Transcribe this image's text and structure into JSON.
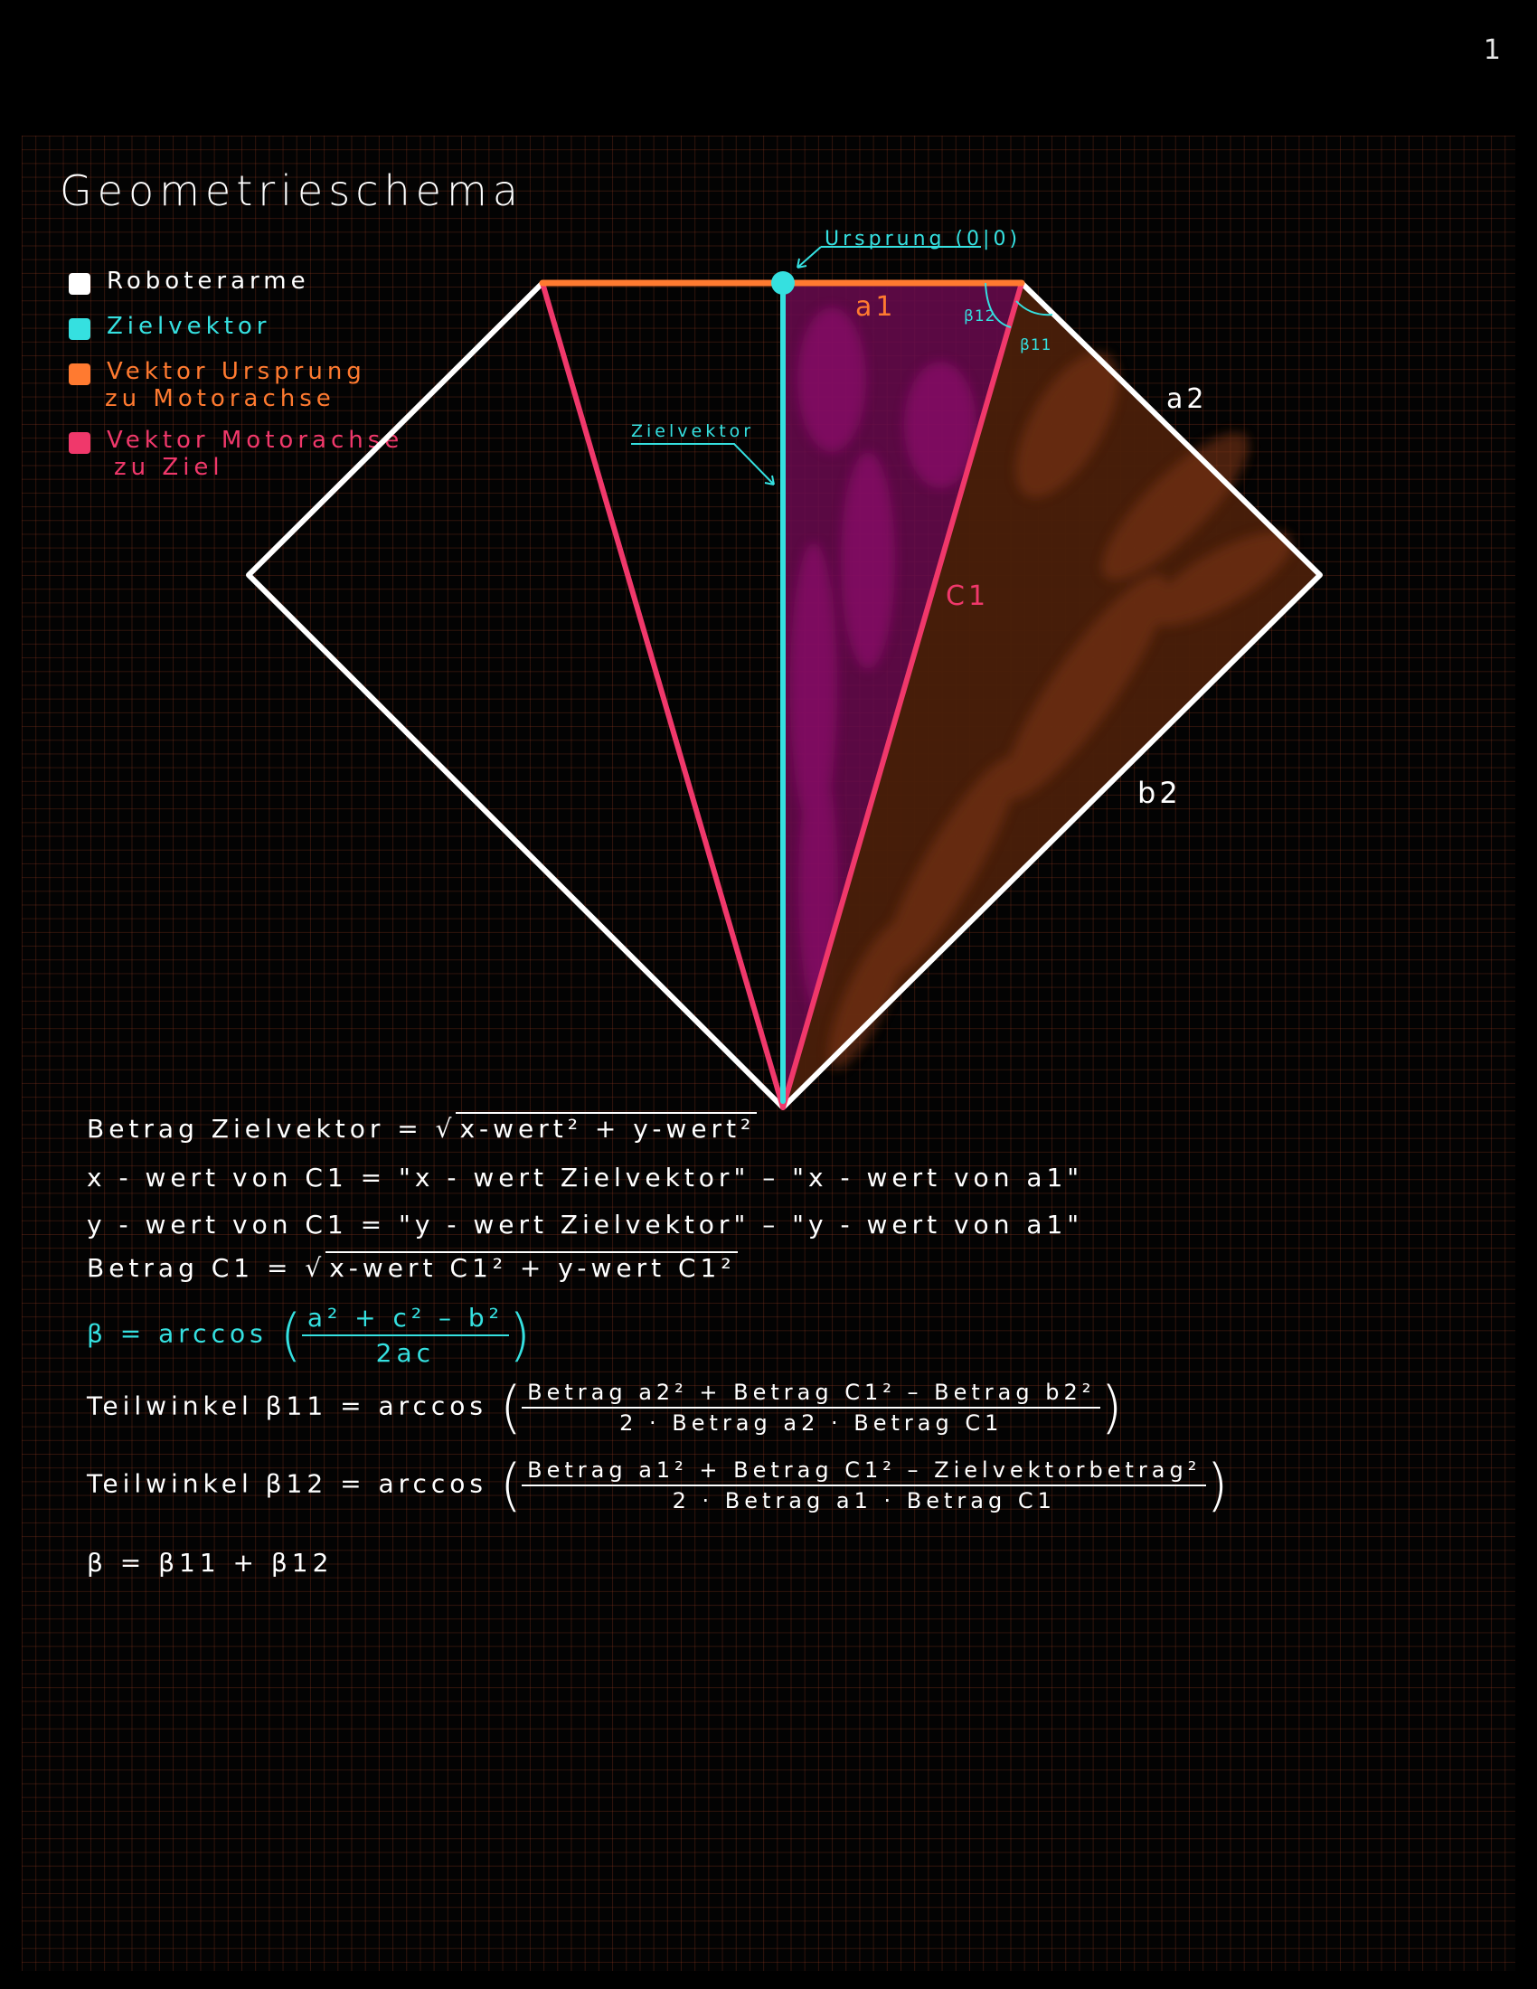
{
  "page_number": "1",
  "title": "Geometrieschema",
  "legend": [
    {
      "label": "Roboterarme",
      "color": "#ffffff"
    },
    {
      "label": "Zielvektor",
      "color": "#35e0e0"
    },
    {
      "label": "Vektor Ursprung",
      "label2": "zu Motorachse",
      "color": "#ff7a30"
    },
    {
      "label": "Vektor Motorachse",
      "label2": "zu Ziel",
      "color": "#f0386b"
    }
  ],
  "diagram": {
    "origin_label": "Ursprung (0|0)",
    "target_vector_label": "Zielvektor",
    "a1": "a1",
    "c1": "C1",
    "a2": "a2",
    "b2": "b2",
    "beta12": "β12",
    "beta11": "β11"
  },
  "equations": {
    "e1": "Betrag Zielvektor = √",
    "e1_root": "x-wert² + y-wert²",
    "e2": "x - wert  von  C1 = \"x - wert Zielvektor\" – \"x - wert  von a1\"",
    "e3": "y - wert  von  C1 = \"y - wert Zielvektor\" – \"y - wert  von a1\"",
    "e4": "Betrag  C1 = √",
    "e4_root": "x-wert C1² + y-wert C1²",
    "e5_prefix": "β = arccos",
    "e5_num": "a² + c² – b²",
    "e5_den": "2ac",
    "e6_prefix": "Teilwinkel β11 = arccos",
    "e6_num": "Betrag a2² + Betrag C1² – Betrag b2²",
    "e6_den": "2 · Betrag a2 · Betrag C1",
    "e7_prefix": "Teilwinkel β12 = arccos",
    "e7_num": "Betrag a1² + Betrag C1² – Zielvektorbetrag²",
    "e7_den": "2 · Betrag a1 · Betrag C1",
    "e8": "β = β11 + β12"
  },
  "colors": {
    "arms": "#ffffff",
    "target": "#35e0e0",
    "origin_vector": "#ff7a30",
    "motor_vector": "#f0386b",
    "fill_purple": "#7a0a5a",
    "fill_brown": "#5a2a0e"
  }
}
